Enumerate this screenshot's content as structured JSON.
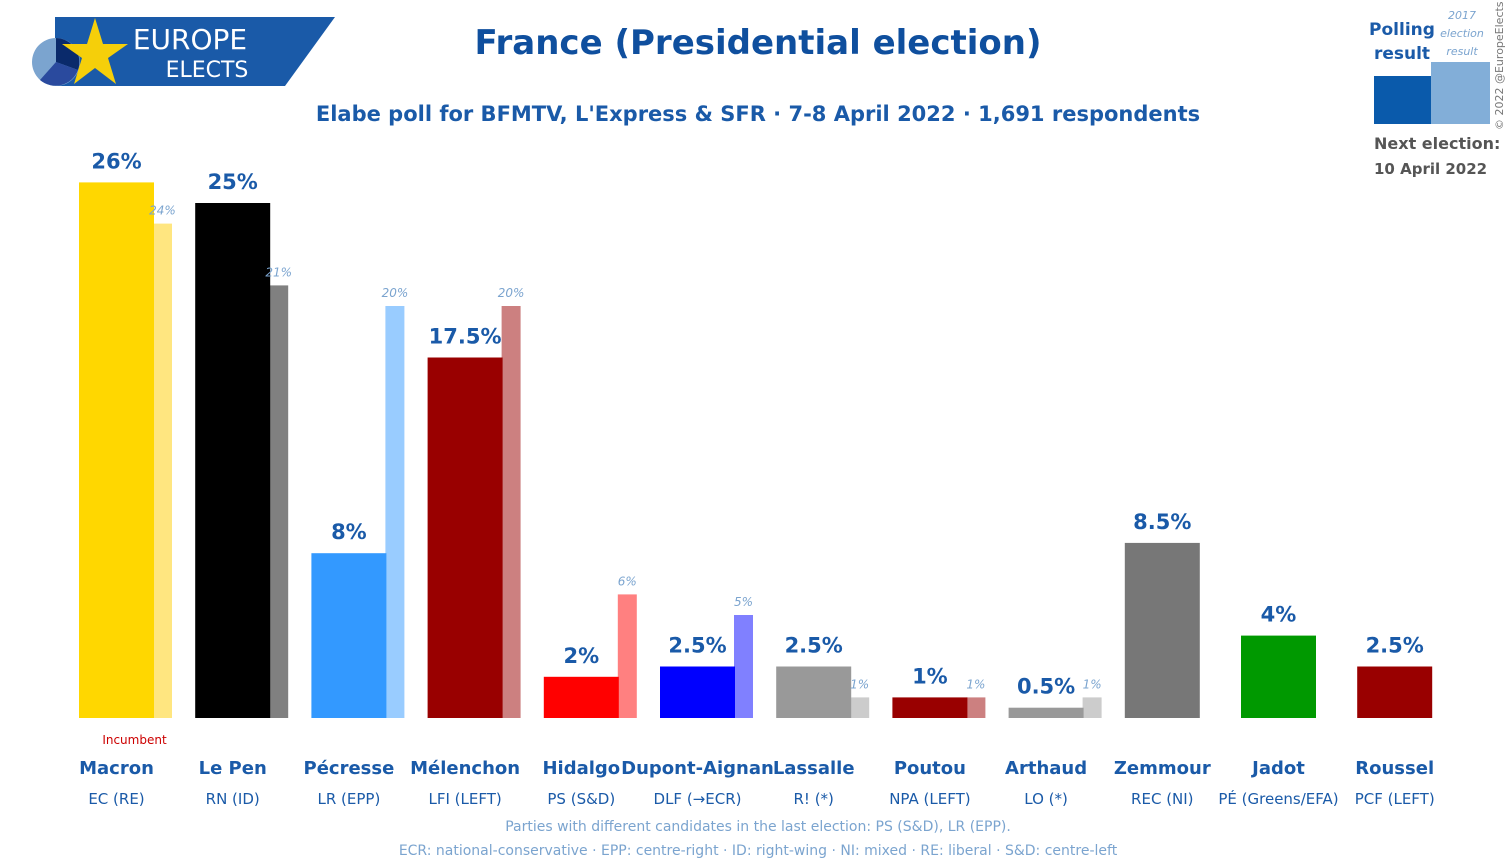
{
  "header": {
    "title": "France (Presidential election)",
    "subtitle": "Elabe poll for BFMTV, L'Express & SFR · 7-8 April 2022 · 1,691 respondents",
    "logo_line1": "EUROPE",
    "logo_line2": "ELECTS",
    "copyright": "© 2022 @EuropeElects"
  },
  "legend": {
    "polling_label_1": "Polling",
    "polling_label_2": "result",
    "previous_label_1": "2017",
    "previous_label_2": "election",
    "previous_label_3": "result",
    "polling_color": "#0a5aab",
    "previous_color": "#82aed8",
    "next_election_label": "Next election:",
    "next_election_date": "10 April 2022"
  },
  "chart_data": {
    "type": "bar",
    "ylim": [
      0,
      26
    ],
    "categories": [
      "Macron",
      "Le Pen",
      "Pécresse",
      "Mélenchon",
      "Hidalgo",
      "Dupont-Aignan",
      "Lassalle",
      "Poutou",
      "Arthaud",
      "Zemmour",
      "Jadot",
      "Roussel"
    ],
    "parties": [
      "EC (RE)",
      "RN (ID)",
      "LR (EPP)",
      "LFI (LEFT)",
      "PS (S&D)",
      "DLF (→ECR)",
      "R! (*)",
      "NPA (LEFT)",
      "LO (*)",
      "REC (NI)",
      "PÉ (Greens/EFA)",
      "PCF (LEFT)"
    ],
    "series": [
      {
        "name": "Polling result",
        "values": [
          26,
          25,
          8,
          17.5,
          2,
          2.5,
          2.5,
          1,
          0.5,
          8.5,
          4,
          2.5
        ],
        "labels": [
          "26%",
          "25%",
          "8%",
          "17.5%",
          "2%",
          "2.5%",
          "2.5%",
          "1%",
          "0.5%",
          "8.5%",
          "4%",
          "2.5%"
        ],
        "colors": [
          "#ffd700",
          "#000000",
          "#3399ff",
          "#990000",
          "#ff0000",
          "#0000ff",
          "#999999",
          "#990000",
          "#999999",
          "#777777",
          "#009900",
          "#990000"
        ]
      },
      {
        "name": "2017 election result",
        "values": [
          24,
          21,
          20,
          20,
          6,
          5,
          1,
          1,
          1,
          null,
          null,
          null
        ],
        "labels": [
          "24%",
          "21%",
          "20%",
          "20%",
          "6%",
          "5%",
          "1%",
          "1%",
          "1%",
          "",
          "",
          ""
        ],
        "colors": [
          "#ffe680",
          "#808080",
          "#99ccff",
          "#cc8080",
          "#ff8080",
          "#8080ff",
          "#cccccc",
          "#cc8080",
          "#cccccc",
          "",
          "",
          ""
        ]
      }
    ],
    "annotations": {
      "incumbent": "Incumbent"
    }
  },
  "footer": {
    "note1": "Parties with different candidates in the last election: PS (S&D), LR (EPP).",
    "note2": "ECR: national-conservative · EPP: centre-right · ID: right-wing · NI: mixed · RE: liberal · S&D: centre-left"
  }
}
